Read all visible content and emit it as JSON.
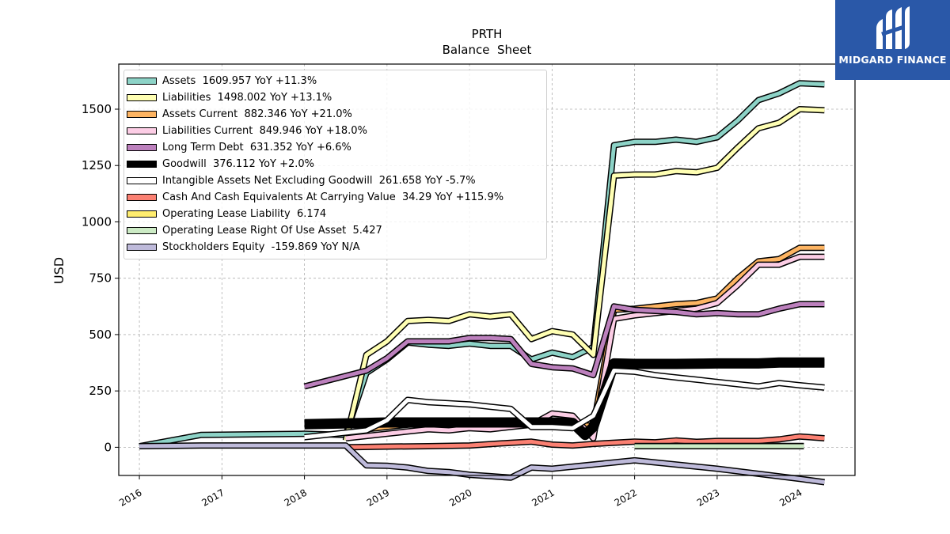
{
  "chart_data": {
    "type": "line",
    "title": "PRTH",
    "subtitle": "Balance  Sheet",
    "xlabel": "",
    "ylabel": "USD",
    "xlim": [
      2015.75,
      2024.67
    ],
    "ylim": [
      -125,
      1700
    ],
    "x_ticks": [
      "2016",
      "2017",
      "2018",
      "2019",
      "2020",
      "2021",
      "2022",
      "2023",
      "2024"
    ],
    "y_ticks": [
      "0",
      "250",
      "500",
      "750",
      "1000",
      "1250",
      "1500"
    ],
    "grid": true,
    "legend_position": "upper-left",
    "series": [
      {
        "name": "Assets",
        "label": "Assets  1609.957 YoY +11.3%",
        "color": "#8dd3c7",
        "x": [
          2016.0,
          2016.75,
          2018.0,
          2018.5,
          2018.75,
          2019.0,
          2019.25,
          2019.5,
          2019.75,
          2020.0,
          2020.25,
          2020.5,
          2020.75,
          2021.0,
          2021.25,
          2021.5,
          2021.75,
          2022.0,
          2022.25,
          2022.5,
          2022.75,
          2023.0,
          2023.25,
          2023.5,
          2023.75,
          2024.0,
          2024.3
        ],
        "y": [
          5,
          55,
          60,
          55,
          330,
          390,
          465,
          455,
          450,
          460,
          450,
          450,
          390,
          420,
          400,
          445,
          1340,
          1355,
          1355,
          1365,
          1355,
          1375,
          1450,
          1540,
          1570,
          1615,
          1610
        ]
      },
      {
        "name": "Liabilities",
        "label": "Liabilities  1498.002 YoY +13.1%",
        "color": "#ffffb3",
        "x": [
          2018.5,
          2018.75,
          2019.0,
          2019.25,
          2019.5,
          2019.75,
          2020.0,
          2020.25,
          2020.5,
          2020.75,
          2021.0,
          2021.25,
          2021.5,
          2021.75,
          2022.0,
          2022.25,
          2022.5,
          2022.75,
          2023.0,
          2023.25,
          2023.5,
          2023.75,
          2024.0,
          2024.3
        ],
        "y": [
          30,
          410,
          470,
          560,
          565,
          560,
          590,
          580,
          590,
          480,
          515,
          500,
          410,
          1205,
          1210,
          1210,
          1225,
          1220,
          1240,
          1330,
          1415,
          1440,
          1500,
          1495
        ]
      },
      {
        "name": "Assets Current",
        "label": "Assets Current  882.346 YoY +21.0%",
        "color": "#fdb462",
        "x": [
          2018.5,
          2018.75,
          2019.0,
          2019.25,
          2019.5,
          2019.75,
          2020.0,
          2020.25,
          2020.5,
          2020.75,
          2021.0,
          2021.25,
          2021.5,
          2021.75,
          2022.0,
          2022.25,
          2022.5,
          2022.75,
          2023.0,
          2023.25,
          2023.5,
          2023.75,
          2024.0,
          2024.3
        ],
        "y": [
          60,
          80,
          90,
          100,
          105,
          100,
          110,
          105,
          110,
          110,
          105,
          100,
          95,
          610,
          615,
          625,
          635,
          640,
          660,
          750,
          825,
          835,
          885,
          885
        ]
      },
      {
        "name": "Liabilities Current",
        "label": "Liabilities Current  849.946 YoY +18.0%",
        "color": "#fccde5",
        "x": [
          2018.5,
          2018.75,
          2019.0,
          2019.25,
          2019.5,
          2019.75,
          2020.0,
          2020.25,
          2020.5,
          2020.75,
          2021.0,
          2021.25,
          2021.5,
          2021.75,
          2022.0,
          2022.25,
          2022.5,
          2022.75,
          2023.0,
          2023.25,
          2023.5,
          2023.75,
          2024.0,
          2024.3
        ],
        "y": [
          40,
          50,
          60,
          70,
          80,
          75,
          85,
          80,
          90,
          100,
          150,
          140,
          40,
          570,
          585,
          595,
          605,
          615,
          640,
          720,
          810,
          810,
          845,
          845
        ]
      },
      {
        "name": "Long Term Debt",
        "label": "Long Term Debt  631.352 YoY +6.6%",
        "color": "#bc80bd",
        "x": [
          2018.0,
          2018.75,
          2019.0,
          2019.25,
          2019.5,
          2019.75,
          2020.0,
          2020.25,
          2020.5,
          2020.75,
          2021.0,
          2021.25,
          2021.5,
          2021.75,
          2022.0,
          2022.25,
          2022.5,
          2022.75,
          2023.0,
          2023.25,
          2023.5,
          2023.75,
          2024.0,
          2024.3
        ],
        "y": [
          270,
          340,
          395,
          470,
          470,
          470,
          485,
          485,
          480,
          370,
          355,
          350,
          320,
          625,
          610,
          605,
          600,
          590,
          595,
          590,
          590,
          615,
          635,
          635
        ]
      },
      {
        "name": "Goodwill",
        "label": "Goodwill  376.112 YoY +2.0%",
        "color": "#000000",
        "x": [
          2018.0,
          2018.75,
          2019.0,
          2019.5,
          2020.0,
          2020.5,
          2020.75,
          2021.0,
          2021.25,
          2021.4,
          2021.5,
          2021.75,
          2022.0,
          2022.5,
          2023.0,
          2023.5,
          2023.75,
          2024.0,
          2024.3
        ],
        "y": [
          102,
          108,
          110,
          110,
          110,
          110,
          110,
          110,
          108,
          55,
          90,
          372,
          370,
          370,
          372,
          372,
          376,
          376,
          376
        ]
      },
      {
        "name": "Intangible Assets Net Excluding Goodwill",
        "label": "Intangible Assets Net Excluding Goodwill  261.658 YoY -5.7%",
        "color": "#ffffff",
        "x": [
          2018.0,
          2018.75,
          2019.0,
          2019.25,
          2019.5,
          2019.75,
          2020.0,
          2020.25,
          2020.5,
          2020.75,
          2021.0,
          2021.25,
          2021.5,
          2021.75,
          2022.0,
          2022.25,
          2022.5,
          2022.75,
          2023.0,
          2023.25,
          2023.5,
          2023.75,
          2024.0,
          2024.3
        ],
        "y": [
          45,
          75,
          120,
          210,
          200,
          195,
          190,
          180,
          170,
          90,
          90,
          85,
          140,
          340,
          335,
          320,
          310,
          300,
          290,
          280,
          270,
          285,
          275,
          265
        ]
      },
      {
        "name": "Cash And Cash Equivalents At Carrying Value",
        "label": "Cash And Cash Equivalents At Carrying Value  34.29 YoY +115.9%",
        "color": "#fb8072",
        "x": [
          2018.5,
          2019.0,
          2019.5,
          2020.0,
          2020.5,
          2020.75,
          2021.0,
          2021.25,
          2021.5,
          2022.0,
          2022.25,
          2022.5,
          2022.75,
          2023.0,
          2023.5,
          2023.75,
          2024.0,
          2024.3
        ],
        "y": [
          0,
          3,
          5,
          8,
          20,
          25,
          12,
          8,
          15,
          25,
          22,
          30,
          24,
          28,
          28,
          35,
          48,
          40
        ]
      },
      {
        "name": "Operating Lease Liability",
        "label": "Operating Lease Liability  6.174",
        "color": "#ffed6f",
        "x": [
          2022.0,
          2024.05
        ],
        "y": [
          6,
          6
        ]
      },
      {
        "name": "Operating Lease Right Of Use Asset",
        "label": "Operating Lease Right Of Use Asset  5.427",
        "color": "#ccebc5",
        "x": [
          2022.0,
          2024.05
        ],
        "y": [
          5,
          5
        ]
      },
      {
        "name": "Stockholders Equity",
        "label": "Stockholders Equity  -159.869 YoY N/A",
        "color": "#bebada",
        "x": [
          2016.0,
          2016.75,
          2018.0,
          2018.5,
          2018.75,
          2019.0,
          2019.25,
          2019.5,
          2019.75,
          2020.0,
          2020.25,
          2020.5,
          2020.75,
          2021.0,
          2022.0,
          2023.0,
          2024.0,
          2024.3
        ],
        "y": [
          5,
          8,
          8,
          8,
          -80,
          -82,
          -90,
          -105,
          -110,
          -122,
          -128,
          -135,
          -90,
          -95,
          -58,
          -95,
          -140,
          -155
        ]
      }
    ]
  },
  "logo": {
    "brand": "MIDGARD FINANCE",
    "color": "#2a58a8"
  }
}
